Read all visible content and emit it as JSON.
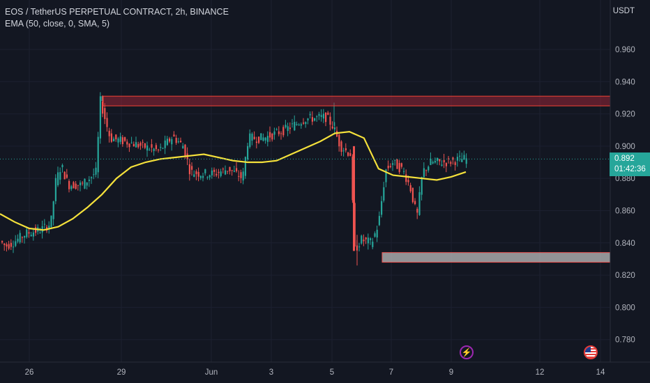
{
  "legend": {
    "symbol_line": "EOS / TetherUS PERPETUAL CONTRACT, 2h, BINANCE",
    "indicator_line": "EMA (50, close, 0, SMA, 5)"
  },
  "price_axis": {
    "currency": "USDT",
    "ticks": [
      "0.960",
      "0.940",
      "0.920",
      "0.900",
      "0.880",
      "0.860",
      "0.840",
      "0.820",
      "0.800",
      "0.780"
    ]
  },
  "time_axis": {
    "ticks": [
      "26",
      "29",
      "Jun",
      "3",
      "5",
      "7",
      "9",
      "12",
      "14"
    ]
  },
  "last_price": {
    "value": "0.892",
    "countdown": "01:42:36"
  },
  "colors": {
    "background": "#131722",
    "up": "#26a69a",
    "down": "#ef5350",
    "ema": "#f5e13b",
    "resistance_zone": "#f44336",
    "support_zone": "#b0b0b0"
  },
  "events": [
    {
      "icon": "lightning-icon"
    },
    {
      "icon": "us-flag-icon"
    }
  ],
  "chart_data": {
    "type": "candlestick",
    "symbol": "EOS / TetherUS PERPETUAL CONTRACT",
    "interval": "2h",
    "exchange": "BINANCE",
    "ylim": [
      0.775,
      0.985
    ],
    "last_price": 0.892,
    "ema_series": {
      "name": "EMA (50, close, 0, SMA, 5)",
      "values": [
        0.858,
        0.853,
        0.849,
        0.848,
        0.85,
        0.855,
        0.862,
        0.87,
        0.88,
        0.887,
        0.89,
        0.892,
        0.893,
        0.894,
        0.895,
        0.893,
        0.891,
        0.89,
        0.89,
        0.891,
        0.895,
        0.899,
        0.903,
        0.908,
        0.909,
        0.905,
        0.886,
        0.882,
        0.881,
        0.88,
        0.879,
        0.881,
        0.884
      ]
    },
    "zones": [
      {
        "type": "resistance",
        "top": 0.931,
        "bottom": 0.925
      },
      {
        "type": "support",
        "top": 0.834,
        "bottom": 0.828
      }
    ],
    "key_levels": {
      "swing_high_29": 0.931,
      "swing_high_5": 0.927,
      "drop_low_6": 0.826,
      "low_7": 0.8435,
      "rebound_high": 0.9
    }
  }
}
